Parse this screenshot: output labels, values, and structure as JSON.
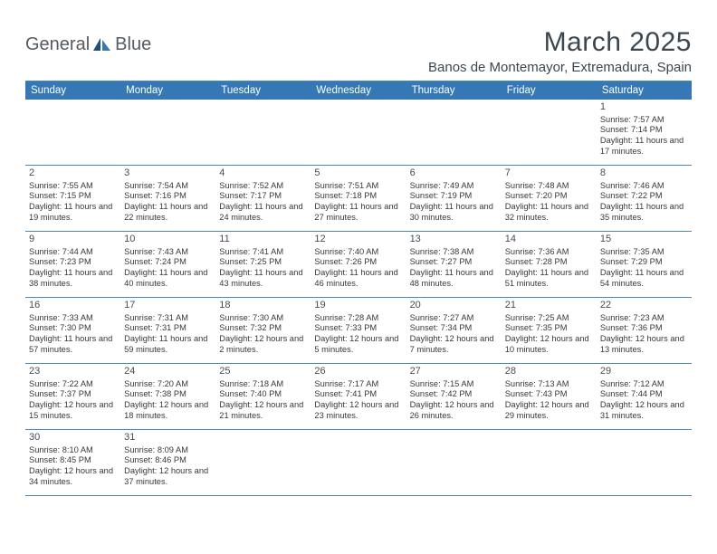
{
  "brand": {
    "part1": "General",
    "part2": "Blue"
  },
  "title": "March 2025",
  "location": "Banos de Montemayor, Extremadura, Spain",
  "colors": {
    "header_bg": "#3578b5",
    "border": "#4a87b8",
    "title_text": "#3b4750"
  },
  "daysOfWeek": [
    "Sunday",
    "Monday",
    "Tuesday",
    "Wednesday",
    "Thursday",
    "Friday",
    "Saturday"
  ],
  "weeks": [
    [
      null,
      null,
      null,
      null,
      null,
      null,
      {
        "n": "1",
        "sr": "Sunrise: 7:57 AM",
        "ss": "Sunset: 7:14 PM",
        "dl": "Daylight: 11 hours and 17 minutes."
      }
    ],
    [
      {
        "n": "2",
        "sr": "Sunrise: 7:55 AM",
        "ss": "Sunset: 7:15 PM",
        "dl": "Daylight: 11 hours and 19 minutes."
      },
      {
        "n": "3",
        "sr": "Sunrise: 7:54 AM",
        "ss": "Sunset: 7:16 PM",
        "dl": "Daylight: 11 hours and 22 minutes."
      },
      {
        "n": "4",
        "sr": "Sunrise: 7:52 AM",
        "ss": "Sunset: 7:17 PM",
        "dl": "Daylight: 11 hours and 24 minutes."
      },
      {
        "n": "5",
        "sr": "Sunrise: 7:51 AM",
        "ss": "Sunset: 7:18 PM",
        "dl": "Daylight: 11 hours and 27 minutes."
      },
      {
        "n": "6",
        "sr": "Sunrise: 7:49 AM",
        "ss": "Sunset: 7:19 PM",
        "dl": "Daylight: 11 hours and 30 minutes."
      },
      {
        "n": "7",
        "sr": "Sunrise: 7:48 AM",
        "ss": "Sunset: 7:20 PM",
        "dl": "Daylight: 11 hours and 32 minutes."
      },
      {
        "n": "8",
        "sr": "Sunrise: 7:46 AM",
        "ss": "Sunset: 7:22 PM",
        "dl": "Daylight: 11 hours and 35 minutes."
      }
    ],
    [
      {
        "n": "9",
        "sr": "Sunrise: 7:44 AM",
        "ss": "Sunset: 7:23 PM",
        "dl": "Daylight: 11 hours and 38 minutes."
      },
      {
        "n": "10",
        "sr": "Sunrise: 7:43 AM",
        "ss": "Sunset: 7:24 PM",
        "dl": "Daylight: 11 hours and 40 minutes."
      },
      {
        "n": "11",
        "sr": "Sunrise: 7:41 AM",
        "ss": "Sunset: 7:25 PM",
        "dl": "Daylight: 11 hours and 43 minutes."
      },
      {
        "n": "12",
        "sr": "Sunrise: 7:40 AM",
        "ss": "Sunset: 7:26 PM",
        "dl": "Daylight: 11 hours and 46 minutes."
      },
      {
        "n": "13",
        "sr": "Sunrise: 7:38 AM",
        "ss": "Sunset: 7:27 PM",
        "dl": "Daylight: 11 hours and 48 minutes."
      },
      {
        "n": "14",
        "sr": "Sunrise: 7:36 AM",
        "ss": "Sunset: 7:28 PM",
        "dl": "Daylight: 11 hours and 51 minutes."
      },
      {
        "n": "15",
        "sr": "Sunrise: 7:35 AM",
        "ss": "Sunset: 7:29 PM",
        "dl": "Daylight: 11 hours and 54 minutes."
      }
    ],
    [
      {
        "n": "16",
        "sr": "Sunrise: 7:33 AM",
        "ss": "Sunset: 7:30 PM",
        "dl": "Daylight: 11 hours and 57 minutes."
      },
      {
        "n": "17",
        "sr": "Sunrise: 7:31 AM",
        "ss": "Sunset: 7:31 PM",
        "dl": "Daylight: 11 hours and 59 minutes."
      },
      {
        "n": "18",
        "sr": "Sunrise: 7:30 AM",
        "ss": "Sunset: 7:32 PM",
        "dl": "Daylight: 12 hours and 2 minutes."
      },
      {
        "n": "19",
        "sr": "Sunrise: 7:28 AM",
        "ss": "Sunset: 7:33 PM",
        "dl": "Daylight: 12 hours and 5 minutes."
      },
      {
        "n": "20",
        "sr": "Sunrise: 7:27 AM",
        "ss": "Sunset: 7:34 PM",
        "dl": "Daylight: 12 hours and 7 minutes."
      },
      {
        "n": "21",
        "sr": "Sunrise: 7:25 AM",
        "ss": "Sunset: 7:35 PM",
        "dl": "Daylight: 12 hours and 10 minutes."
      },
      {
        "n": "22",
        "sr": "Sunrise: 7:23 AM",
        "ss": "Sunset: 7:36 PM",
        "dl": "Daylight: 12 hours and 13 minutes."
      }
    ],
    [
      {
        "n": "23",
        "sr": "Sunrise: 7:22 AM",
        "ss": "Sunset: 7:37 PM",
        "dl": "Daylight: 12 hours and 15 minutes."
      },
      {
        "n": "24",
        "sr": "Sunrise: 7:20 AM",
        "ss": "Sunset: 7:38 PM",
        "dl": "Daylight: 12 hours and 18 minutes."
      },
      {
        "n": "25",
        "sr": "Sunrise: 7:18 AM",
        "ss": "Sunset: 7:40 PM",
        "dl": "Daylight: 12 hours and 21 minutes."
      },
      {
        "n": "26",
        "sr": "Sunrise: 7:17 AM",
        "ss": "Sunset: 7:41 PM",
        "dl": "Daylight: 12 hours and 23 minutes."
      },
      {
        "n": "27",
        "sr": "Sunrise: 7:15 AM",
        "ss": "Sunset: 7:42 PM",
        "dl": "Daylight: 12 hours and 26 minutes."
      },
      {
        "n": "28",
        "sr": "Sunrise: 7:13 AM",
        "ss": "Sunset: 7:43 PM",
        "dl": "Daylight: 12 hours and 29 minutes."
      },
      {
        "n": "29",
        "sr": "Sunrise: 7:12 AM",
        "ss": "Sunset: 7:44 PM",
        "dl": "Daylight: 12 hours and 31 minutes."
      }
    ],
    [
      {
        "n": "30",
        "sr": "Sunrise: 8:10 AM",
        "ss": "Sunset: 8:45 PM",
        "dl": "Daylight: 12 hours and 34 minutes."
      },
      {
        "n": "31",
        "sr": "Sunrise: 8:09 AM",
        "ss": "Sunset: 8:46 PM",
        "dl": "Daylight: 12 hours and 37 minutes."
      },
      null,
      null,
      null,
      null,
      null
    ]
  ]
}
